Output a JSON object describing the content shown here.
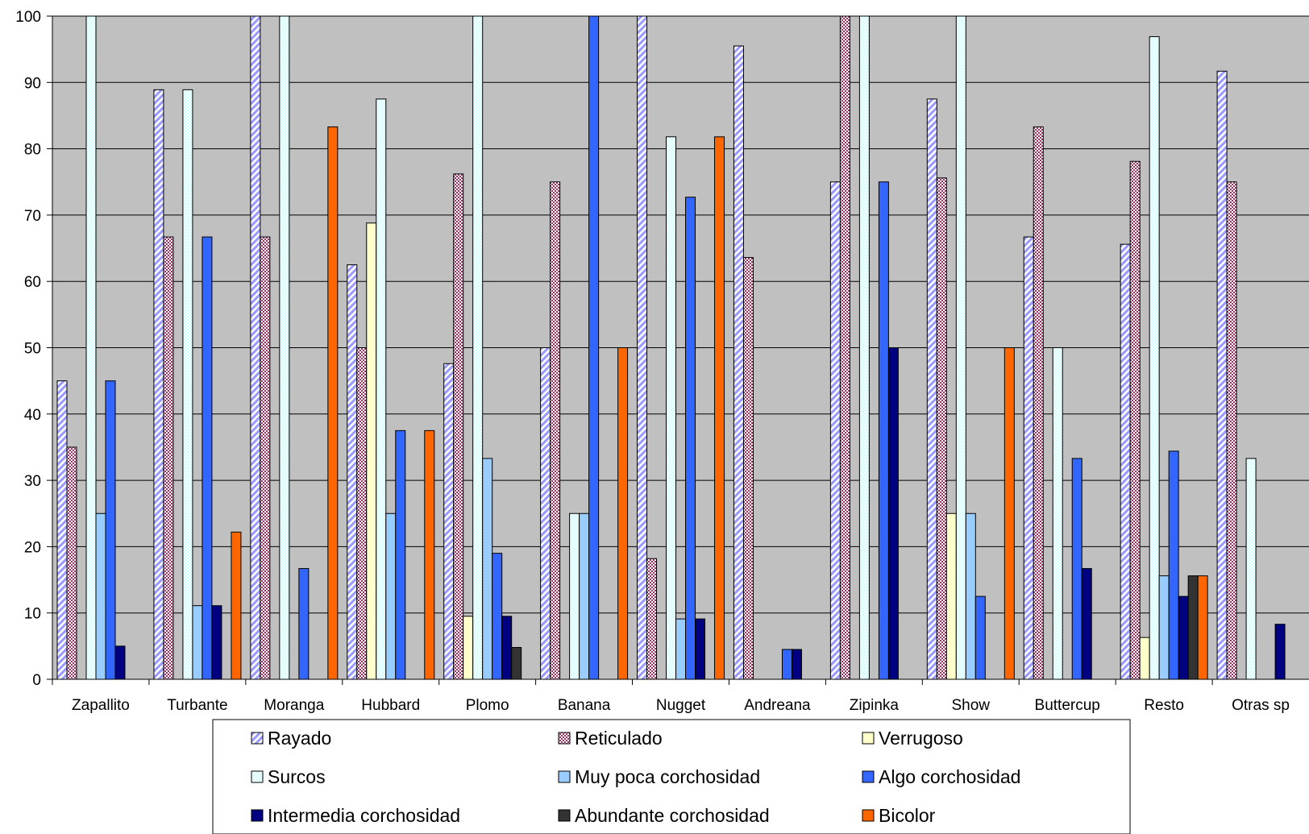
{
  "chart_data": {
    "type": "bar",
    "title": "",
    "xlabel": "",
    "ylabel": "",
    "ylim": [
      0,
      100
    ],
    "yticks": [
      0,
      10,
      20,
      30,
      40,
      50,
      60,
      70,
      80,
      90,
      100
    ],
    "grid": true,
    "legend_position": "bottom",
    "background_color": "#c0c0c0",
    "categories": [
      "Zapallito",
      "Turbante",
      "Moranga",
      "Hubbard",
      "Plomo",
      "Banana",
      "Nugget",
      "Andreana",
      "Zipinka",
      "Show",
      "Buttercup",
      "Resto",
      "Otras sp"
    ],
    "series": [
      {
        "name": "Rayado",
        "color": "#9999ff",
        "pattern": "diagonal-stripes",
        "values": [
          45,
          88.9,
          100,
          62.5,
          47.6,
          50,
          100,
          95.5,
          75,
          87.5,
          66.7,
          65.6,
          91.7
        ]
      },
      {
        "name": "Reticulado",
        "color": "#993366",
        "pattern": "checker",
        "values": [
          35,
          66.7,
          66.7,
          50,
          76.2,
          75,
          18.2,
          63.6,
          100,
          75.6,
          83.3,
          78.1,
          75
        ]
      },
      {
        "name": "Verrugoso",
        "color": "#ffffcc",
        "pattern": "solid",
        "values": [
          0,
          0,
          0,
          68.8,
          9.5,
          0,
          0,
          0,
          0,
          25,
          0,
          6.3,
          0
        ]
      },
      {
        "name": "Surcos",
        "color": "#ccffff",
        "pattern": "dotted",
        "values": [
          100,
          88.9,
          100,
          87.5,
          100,
          25,
          81.8,
          0,
          100,
          100,
          50,
          96.9,
          33.3
        ]
      },
      {
        "name": "Muy poca corchosidad",
        "color": "#99ccff",
        "pattern": "solid",
        "values": [
          25,
          11.1,
          0,
          25,
          33.3,
          25,
          9.1,
          0,
          0,
          25,
          0,
          15.6,
          0
        ]
      },
      {
        "name": "Algo corchosidad",
        "color": "#3366ff",
        "pattern": "solid",
        "values": [
          45,
          66.7,
          16.7,
          37.5,
          19,
          100,
          72.7,
          4.5,
          75,
          12.5,
          33.3,
          34.4,
          0
        ]
      },
      {
        "name": "Intermedia corchosidad",
        "color": "#000080",
        "pattern": "solid",
        "values": [
          5,
          11.1,
          0,
          0,
          9.5,
          0,
          9.1,
          4.5,
          50,
          0,
          16.7,
          12.5,
          8.3
        ]
      },
      {
        "name": "Abundante corchosidad",
        "color": "#333333",
        "pattern": "solid",
        "values": [
          0,
          0,
          0,
          0,
          4.8,
          0,
          0,
          0,
          0,
          0,
          0,
          15.6,
          0
        ]
      },
      {
        "name": "Bicolor",
        "color": "#ff6600",
        "pattern": "solid",
        "values": [
          0,
          22.2,
          83.3,
          37.5,
          0,
          50,
          81.8,
          0,
          0,
          50,
          0,
          15.6,
          0
        ]
      }
    ]
  }
}
